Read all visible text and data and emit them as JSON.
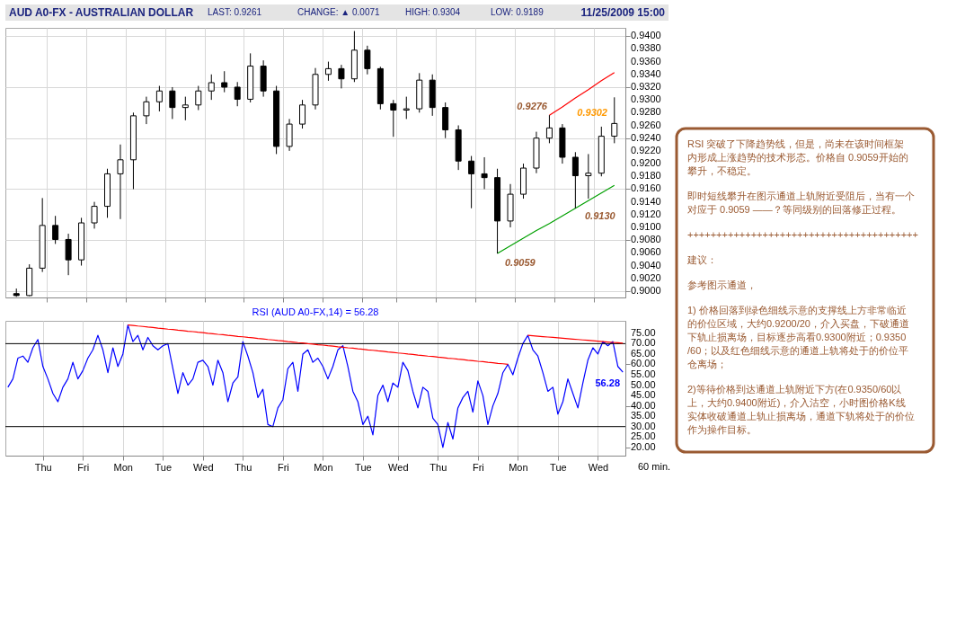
{
  "chart_data": [
    {
      "type": "candlestick",
      "title": "AUD A0-FX - AUSTRALIAN DOLLAR",
      "color": "#000000",
      "categories": [
        null,
        null,
        null,
        null,
        null,
        null,
        null,
        null,
        null,
        null,
        null,
        null,
        null,
        null,
        null,
        null,
        null,
        null,
        null,
        null,
        null,
        null,
        null,
        null,
        null,
        null,
        null,
        null,
        null,
        null,
        null,
        null,
        null,
        null,
        null,
        null,
        null,
        null,
        null,
        null,
        null,
        null,
        null,
        null,
        null,
        null,
        null
      ],
      "ohlc": [
        [
          0.8996,
          0.9004,
          0.8991,
          0.8993
        ],
        [
          0.8993,
          0.9042,
          0.8992,
          0.9036
        ],
        [
          0.9036,
          0.9146,
          0.903,
          0.9103
        ],
        [
          0.9103,
          0.9118,
          0.9074,
          0.9081
        ],
        [
          0.9081,
          0.909,
          0.9025,
          0.9049
        ],
        [
          0.9049,
          0.9115,
          0.904,
          0.9107
        ],
        [
          0.9107,
          0.914,
          0.9098,
          0.9133
        ],
        [
          0.9133,
          0.9192,
          0.9115,
          0.9184
        ],
        [
          0.9184,
          0.923,
          0.9113,
          0.9206
        ],
        [
          0.9206,
          0.928,
          0.916,
          0.9275
        ],
        [
          0.9275,
          0.9305,
          0.9262,
          0.9297
        ],
        [
          0.9297,
          0.9322,
          0.9282,
          0.9314
        ],
        [
          0.9314,
          0.932,
          0.927,
          0.9288
        ],
        [
          0.9288,
          0.9305,
          0.9268,
          0.9292
        ],
        [
          0.9292,
          0.9322,
          0.9284,
          0.9314
        ],
        [
          0.9314,
          0.934,
          0.93,
          0.9327
        ],
        [
          0.9327,
          0.9345,
          0.9312,
          0.932
        ],
        [
          0.932,
          0.9328,
          0.929,
          0.9301
        ],
        [
          0.9301,
          0.9373,
          0.9296,
          0.9353
        ],
        [
          0.9353,
          0.9362,
          0.9305,
          0.9314
        ],
        [
          0.9314,
          0.9322,
          0.9215,
          0.9227
        ],
        [
          0.9227,
          0.927,
          0.922,
          0.9262
        ],
        [
          0.9262,
          0.93,
          0.9255,
          0.9292
        ],
        [
          0.9292,
          0.935,
          0.9285,
          0.934
        ],
        [
          0.934,
          0.936,
          0.933,
          0.9349
        ],
        [
          0.9349,
          0.9355,
          0.9318,
          0.9333
        ],
        [
          0.9333,
          0.9408,
          0.9328,
          0.9378
        ],
        [
          0.9378,
          0.9385,
          0.934,
          0.9349
        ],
        [
          0.9349,
          0.9352,
          0.9285,
          0.9294
        ],
        [
          0.9294,
          0.93,
          0.9242,
          0.9284
        ],
        [
          0.9284,
          0.9305,
          0.927,
          0.9286
        ],
        [
          0.9286,
          0.9342,
          0.928,
          0.9331
        ],
        [
          0.9331,
          0.934,
          0.9275,
          0.9288
        ],
        [
          0.9288,
          0.9296,
          0.924,
          0.9253
        ],
        [
          0.9253,
          0.926,
          0.919,
          0.9204
        ],
        [
          0.9204,
          0.9212,
          0.913,
          0.9184
        ],
        [
          0.9184,
          0.921,
          0.916,
          0.9178
        ],
        [
          0.9178,
          0.9192,
          0.9059,
          0.911
        ],
        [
          0.911,
          0.9168,
          0.91,
          0.9152
        ],
        [
          0.9152,
          0.92,
          0.9145,
          0.9193
        ],
        [
          0.9193,
          0.925,
          0.9185,
          0.924
        ],
        [
          0.924,
          0.9276,
          0.9232,
          0.9256
        ],
        [
          0.9256,
          0.9262,
          0.92,
          0.921
        ],
        [
          0.921,
          0.9218,
          0.913,
          0.9181
        ],
        [
          0.9181,
          0.9215,
          0.9145,
          0.9185
        ],
        [
          0.9185,
          0.9258,
          0.918,
          0.9243
        ],
        [
          0.9243,
          0.9304,
          0.9232,
          0.9263
        ]
      ],
      "series": [
        {
          "type": "line",
          "color": "#ff0000",
          "values": [
            null,
            null,
            null,
            null,
            null,
            null,
            null,
            null,
            null,
            null,
            null,
            null,
            null,
            null,
            null,
            null,
            null,
            null,
            null,
            null,
            null,
            null,
            null,
            null,
            null,
            null,
            null,
            null,
            null,
            null,
            null,
            null,
            null,
            null,
            null,
            null,
            null,
            null,
            null,
            null,
            null,
            0.9276,
            0.9289,
            0.9303,
            0.9316,
            0.933,
            0.9343
          ]
        },
        {
          "type": "line",
          "color": "#00a000",
          "values": [
            null,
            null,
            null,
            null,
            null,
            null,
            null,
            null,
            null,
            null,
            null,
            null,
            null,
            null,
            null,
            null,
            null,
            null,
            null,
            null,
            null,
            null,
            null,
            null,
            null,
            null,
            null,
            null,
            null,
            null,
            null,
            null,
            null,
            null,
            null,
            null,
            null,
            0.9059,
            0.9071,
            0.9083,
            0.9095,
            0.9106,
            0.9118,
            0.913,
            0.9142,
            0.9154,
            0.9166
          ]
        }
      ],
      "ylim": [
        0.899,
        0.9413
      ],
      "yticks": [
        {
          "value": 0.9,
          "label": "0.9000"
        },
        {
          "value": 0.902,
          "label": "0.9020"
        },
        {
          "value": 0.904,
          "label": "0.9040"
        },
        {
          "value": 0.906,
          "label": "0.9060"
        },
        {
          "value": 0.908,
          "label": "0.9080"
        },
        {
          "value": 0.91,
          "label": "0.9100"
        },
        {
          "value": 0.912,
          "label": "0.9120"
        },
        {
          "value": 0.914,
          "label": "0.9140"
        },
        {
          "value": 0.916,
          "label": "0.9160"
        },
        {
          "value": 0.918,
          "label": "0.9180"
        },
        {
          "value": 0.92,
          "label": "0.9200"
        },
        {
          "value": 0.922,
          "label": "0.9220"
        },
        {
          "value": 0.924,
          "label": "0.9240"
        },
        {
          "value": 0.926,
          "label": "0.9260"
        },
        {
          "value": 0.928,
          "label": "0.9280"
        },
        {
          "value": 0.93,
          "label": "0.9300"
        },
        {
          "value": 0.932,
          "label": "0.9320"
        },
        {
          "value": 0.934,
          "label": "0.9340"
        },
        {
          "value": 0.936,
          "label": "0.9360"
        },
        {
          "value": 0.938,
          "label": "0.9380"
        },
        {
          "value": 0.94,
          "label": "0.9400"
        }
      ],
      "tick_labels": "y",
      "grid": true,
      "annotations": [
        "LAST: 0.9261",
        "CHANGE: ▲ 0.0071",
        "HIGH: 0.9304",
        "LOW: 0.9189",
        "11/25/2009 15:00",
        "0.9302",
        "0.9276",
        "0.9130",
        "0.9059",
        "RSI 突破了下降趋势线，但是，尚未在该时间框架内形成上涨趋势的技术形态。价格自 0.9059开始的攀升，不稳定。",
        "即时短线攀升在图示通道上轨附近受阻后，当有一个对应于 0.9059 ——？等同级别的回落修正过程。",
        "++++++++++++++++++++++++++++++++++++++++",
        "建议：",
        "参考图示通道，",
        "1) 价格回落到绿色细线示意的支撑线上方非常临近的价位区域，大约0.9200/20，介入买盘，下破通道下轨止损离场，目标逐步高看0.9300附近；0.9350/60；以及红色细线示意的通道上轨将处于的价位平仓离场；",
        "2)等待价格到达通道上轨附近下方(在0.9350/60以上，大约0.9400附近)，介入沽空，小时图价格K线实体收破通道上轨止损离场，通道下轨将处于的价位作为操作目标。"
      ]
    },
    {
      "type": "line",
      "title": "RSI (AUD A0-FX,14) = 56.28",
      "categories": [
        null,
        null,
        null,
        null,
        null,
        null,
        null,
        "Thu",
        null,
        null,
        null,
        null,
        null,
        null,
        null,
        "Fri",
        null,
        null,
        null,
        null,
        null,
        null,
        null,
        "Mon",
        null,
        null,
        null,
        null,
        null,
        null,
        null,
        "Tue",
        null,
        null,
        null,
        null,
        null,
        null,
        null,
        "Wed",
        null,
        null,
        null,
        null,
        null,
        null,
        null,
        "Thu",
        null,
        null,
        null,
        null,
        null,
        null,
        null,
        "Fri",
        null,
        null,
        null,
        null,
        null,
        null,
        null,
        "Mon",
        null,
        null,
        null,
        null,
        null,
        null,
        null,
        "Tue",
        null,
        null,
        null,
        null,
        null,
        null,
        "Wed",
        null,
        null,
        null,
        null,
        null,
        null,
        null,
        "Thu",
        null,
        null,
        null,
        null,
        null,
        null,
        null,
        "Fri",
        null,
        null,
        null,
        null,
        null,
        null,
        null,
        "Mon",
        null,
        null,
        null,
        null,
        null,
        null,
        null,
        "Tue",
        null,
        null,
        null,
        null,
        null,
        null,
        null,
        "Wed",
        null,
        null,
        null,
        null,
        null
      ],
      "series": [
        {
          "color": "#0000ff",
          "values": [
            49,
            53,
            63,
            64,
            61,
            68,
            72,
            59,
            53,
            46,
            42,
            49,
            53,
            61,
            53,
            57,
            63,
            67,
            74,
            67,
            56,
            68,
            59,
            65,
            79,
            71,
            74,
            67,
            73,
            69,
            67,
            69,
            70,
            58,
            46,
            56,
            50,
            53,
            61,
            62,
            59,
            50,
            62,
            56,
            42,
            51,
            54,
            71,
            64,
            56,
            44,
            48,
            31,
            30,
            39,
            43,
            58,
            61,
            47,
            65,
            67,
            61,
            63,
            59,
            53,
            59,
            67,
            69,
            59,
            47,
            42,
            31,
            35,
            26,
            45,
            50,
            42,
            51,
            49,
            61,
            57,
            47,
            39,
            49,
            47,
            34,
            31,
            20,
            32,
            24,
            39,
            44,
            47,
            37,
            52,
            45,
            31,
            40,
            46,
            56,
            60,
            55,
            63,
            70,
            74,
            67,
            64,
            56,
            47,
            49,
            36,
            42,
            53,
            46,
            39,
            51,
            62,
            68,
            65,
            71,
            69,
            71,
            59,
            56.28
          ]
        },
        {
          "type": "line",
          "color": "#ff0000",
          "values": [
            null,
            null,
            null,
            null,
            null,
            null,
            null,
            null,
            null,
            null,
            null,
            null,
            null,
            null,
            null,
            null,
            null,
            null,
            null,
            null,
            null,
            null,
            null,
            null,
            79,
            78.8,
            78.5,
            78.3,
            78,
            77.8,
            77.5,
            77.3,
            77,
            76.8,
            76.5,
            76.3,
            76,
            75.8,
            75.5,
            75.3,
            75,
            74.8,
            74.5,
            74.3,
            74,
            73.8,
            73.5,
            73.3,
            73,
            72.8,
            72.5,
            72.3,
            72,
            71.8,
            71.5,
            71.3,
            71,
            70.8,
            70.5,
            70.3,
            70,
            69.8,
            69.5,
            69.3,
            69,
            68.8,
            68.5,
            68.3,
            68,
            67.8,
            67.5,
            67.3,
            67,
            66.8,
            66.5,
            66.3,
            66,
            65.8,
            65.5,
            65.3,
            65,
            64.8,
            64.5,
            64.3,
            64,
            63.8,
            63.5,
            63.3,
            63,
            62.8,
            62.5,
            62.3,
            62,
            61.8,
            61.5,
            61.3,
            61,
            60.8,
            60.5,
            60.3,
            60,
            null,
            null,
            null,
            null,
            null,
            null,
            null,
            null,
            null,
            null,
            null,
            null,
            null,
            null,
            null,
            null,
            null,
            null,
            null,
            null,
            null,
            null,
            null
          ]
        },
        {
          "type": "line",
          "color": "#ff0000",
          "values": [
            null,
            null,
            null,
            null,
            null,
            null,
            null,
            null,
            null,
            null,
            null,
            null,
            null,
            null,
            null,
            null,
            null,
            null,
            null,
            null,
            null,
            null,
            null,
            null,
            null,
            null,
            null,
            null,
            null,
            null,
            null,
            null,
            null,
            null,
            null,
            null,
            null,
            null,
            null,
            null,
            null,
            null,
            null,
            null,
            null,
            null,
            null,
            null,
            null,
            null,
            null,
            null,
            null,
            null,
            null,
            null,
            null,
            null,
            null,
            null,
            null,
            null,
            null,
            null,
            null,
            null,
            null,
            null,
            null,
            null,
            null,
            null,
            null,
            null,
            null,
            null,
            null,
            null,
            null,
            null,
            null,
            null,
            null,
            null,
            null,
            null,
            null,
            null,
            null,
            null,
            null,
            null,
            null,
            null,
            null,
            null,
            null,
            null,
            null,
            null,
            null,
            null,
            null,
            null,
            74,
            73.8,
            73.6,
            73.4,
            73.2,
            73,
            72.8,
            72.6,
            72.4,
            72.2,
            72,
            71.8,
            71.6,
            71.4,
            71.2,
            71,
            70.8,
            70.6,
            70.4,
            70.2
          ]
        }
      ],
      "ylim": [
        16,
        81
      ],
      "yticks": [
        {
          "value": 20,
          "label": "20.00"
        },
        {
          "value": 25,
          "label": "25.00"
        },
        {
          "value": 30,
          "label": "30.00"
        },
        {
          "value": 35,
          "label": "35.00"
        },
        {
          "value": 40,
          "label": "40.00"
        },
        {
          "value": 45,
          "label": "45.00"
        },
        {
          "value": 50,
          "label": "50.00"
        },
        {
          "value": 55,
          "label": "55.00"
        },
        {
          "value": 60,
          "label": "60.00"
        },
        {
          "value": 65,
          "label": "65.00"
        },
        {
          "value": 70,
          "label": "70.00"
        },
        {
          "value": 75,
          "label": "75.00"
        }
      ],
      "grid": "x",
      "ref_lines": [
        {
          "axis": "y",
          "value": 70,
          "color": "#000000"
        },
        {
          "axis": "y",
          "value": 30,
          "color": "#000000"
        }
      ],
      "annotations": [
        "60 min.",
        "56.28"
      ]
    }
  ]
}
